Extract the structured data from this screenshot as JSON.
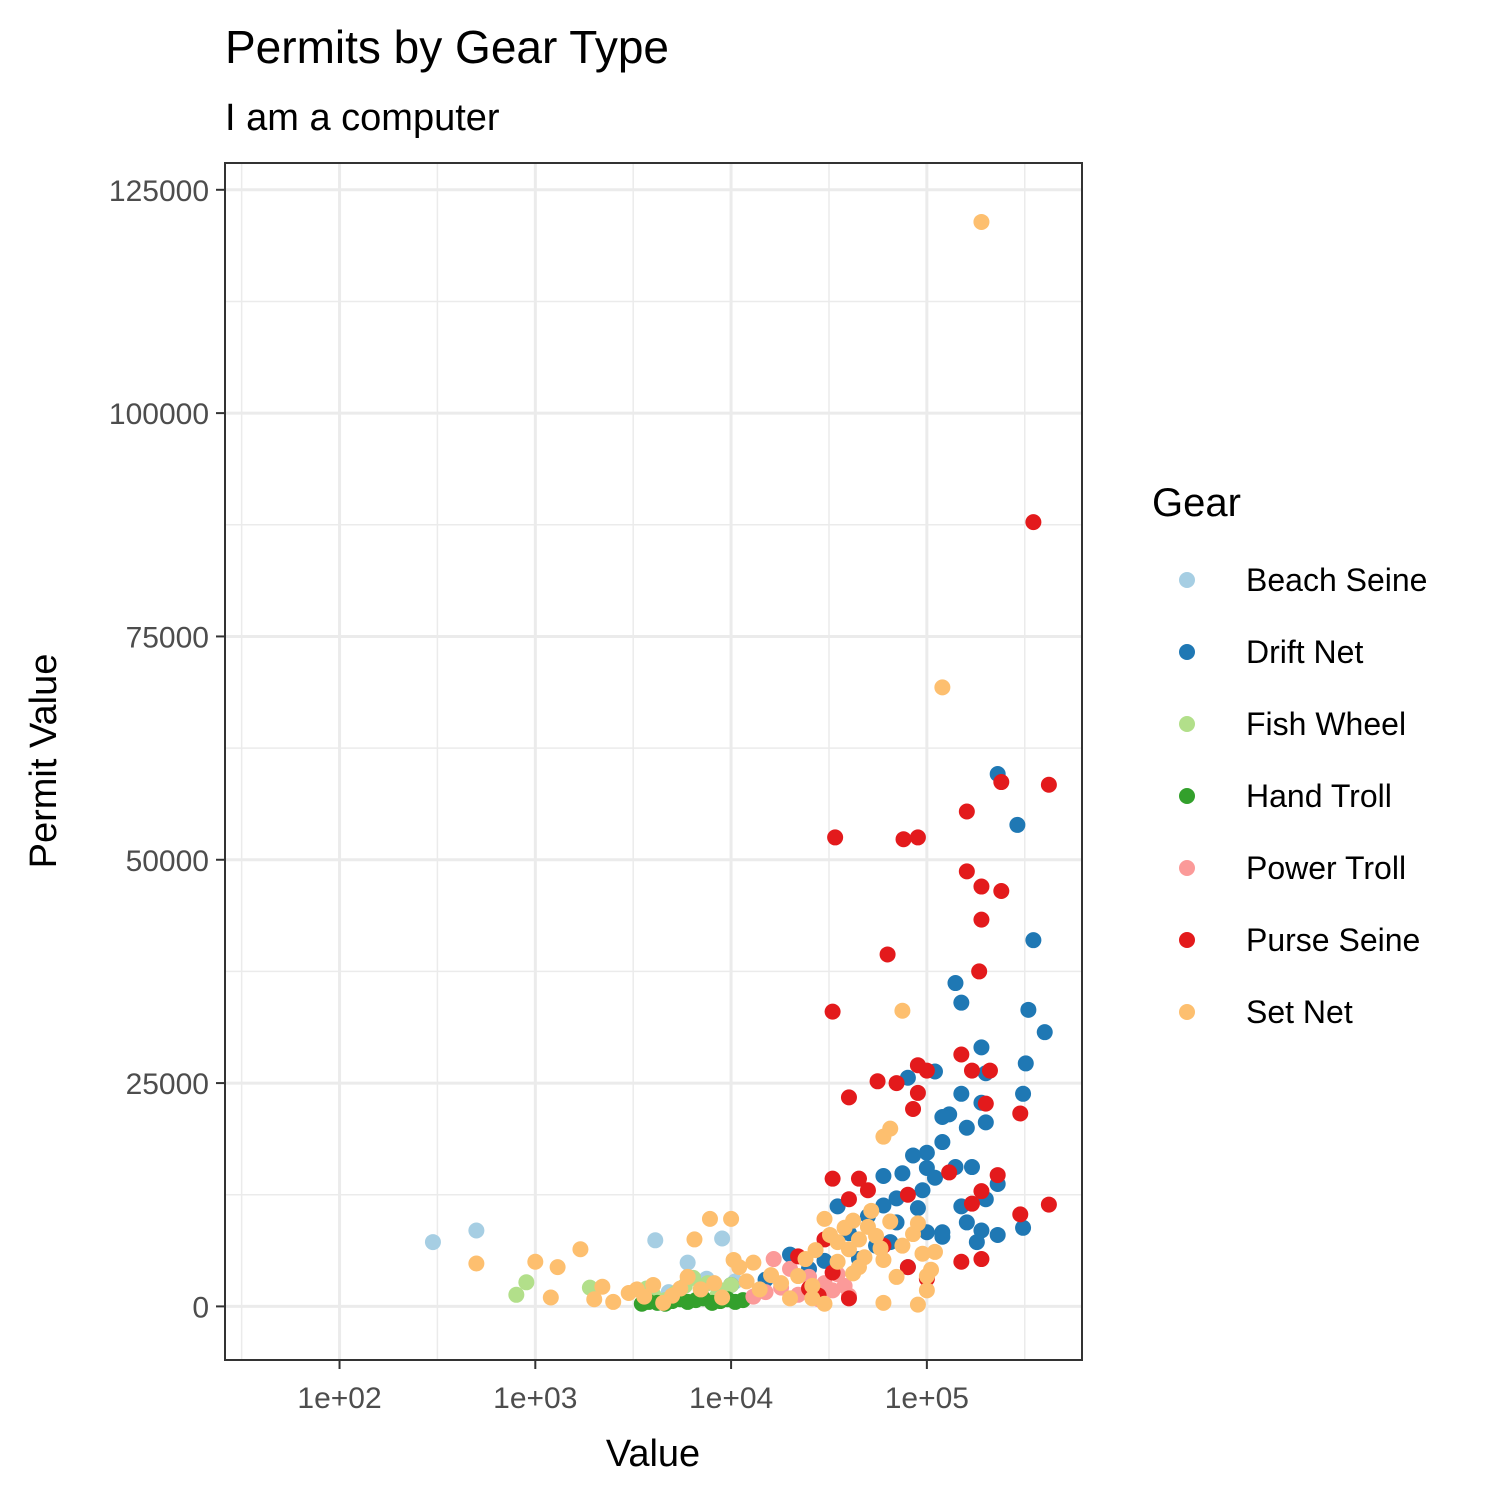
{
  "chart_data": {
    "type": "scatter",
    "title": "Permits by Gear Type",
    "subtitle": "I am a computer",
    "xlabel": "Value",
    "ylabel": "Permit Value",
    "x_scale": "log10",
    "xlim": [
      26,
      620000
    ],
    "ylim": [
      -6000,
      128000
    ],
    "x_ticks": [
      100,
      1000,
      10000,
      100000
    ],
    "x_tick_labels": [
      "1e+02",
      "1e+03",
      "1e+04",
      "1e+05"
    ],
    "y_ticks": [
      0,
      25000,
      50000,
      75000,
      100000,
      125000
    ],
    "y_tick_labels": [
      "0",
      "25000",
      "50000",
      "75000",
      "100000",
      "125000"
    ],
    "grid": true,
    "legend": {
      "title": "Gear",
      "position": "right"
    },
    "series": [
      {
        "name": "Beach Seine",
        "color": "#a6cee3",
        "points": [
          [
            300,
            7200
          ],
          [
            500,
            8500
          ],
          [
            4100,
            7400
          ],
          [
            9000,
            7600
          ],
          [
            6000,
            4900
          ],
          [
            7500,
            3100
          ],
          [
            4800,
            1600
          ],
          [
            10500,
            2800
          ]
        ]
      },
      {
        "name": "Drift Net",
        "color": "#1f78b4",
        "points": [
          [
            230000,
            59600
          ],
          [
            290000,
            53900
          ],
          [
            350000,
            41000
          ],
          [
            330000,
            33200
          ],
          [
            400000,
            30700
          ],
          [
            320000,
            27200
          ],
          [
            310000,
            23800
          ],
          [
            310000,
            8800
          ],
          [
            190000,
            29000
          ],
          [
            140000,
            36200
          ],
          [
            150000,
            34000
          ],
          [
            200000,
            26100
          ],
          [
            150000,
            23800
          ],
          [
            190000,
            22800
          ],
          [
            200000,
            20600
          ],
          [
            160000,
            20000
          ],
          [
            130000,
            21500
          ],
          [
            120000,
            21200
          ],
          [
            110000,
            26300
          ],
          [
            80000,
            25600
          ],
          [
            120000,
            18400
          ],
          [
            100000,
            17200
          ],
          [
            85000,
            16900
          ],
          [
            75000,
            14900
          ],
          [
            100000,
            15500
          ],
          [
            110000,
            14400
          ],
          [
            95000,
            13000
          ],
          [
            140000,
            15600
          ],
          [
            170000,
            15600
          ],
          [
            200000,
            12000
          ],
          [
            230000,
            13700
          ],
          [
            190000,
            8500
          ],
          [
            230000,
            8000
          ],
          [
            180000,
            7200
          ],
          [
            160000,
            9400
          ],
          [
            120000,
            8300
          ],
          [
            100000,
            8300
          ],
          [
            70000,
            12100
          ],
          [
            60000,
            11300
          ],
          [
            50000,
            10100
          ],
          [
            40000,
            8200
          ],
          [
            35000,
            11200
          ],
          [
            55000,
            6800
          ],
          [
            65000,
            7200
          ],
          [
            45000,
            5300
          ],
          [
            30000,
            5100
          ],
          [
            25000,
            4200
          ],
          [
            20000,
            5800
          ],
          [
            15000,
            3000
          ],
          [
            10000,
            2400
          ],
          [
            80000,
            4400
          ],
          [
            120000,
            7800
          ],
          [
            150000,
            11200
          ],
          [
            70000,
            9400
          ],
          [
            90000,
            11000
          ],
          [
            60000,
            14600
          ]
        ]
      },
      {
        "name": "Fish Wheel",
        "color": "#b2df8a",
        "points": [
          [
            800,
            1300
          ],
          [
            900,
            2700
          ],
          [
            1900,
            2100
          ],
          [
            3700,
            2000
          ],
          [
            4000,
            1300
          ],
          [
            4600,
            700
          ],
          [
            5200,
            1500
          ],
          [
            5800,
            2300
          ],
          [
            6400,
            3200
          ],
          [
            7000,
            1900
          ],
          [
            7600,
            2600
          ],
          [
            8500,
            1200
          ],
          [
            9200,
            1800
          ],
          [
            10000,
            2400
          ]
        ]
      },
      {
        "name": "Hand Troll",
        "color": "#33a02c",
        "points": [
          [
            3500,
            300
          ],
          [
            3800,
            500
          ],
          [
            4200,
            400
          ],
          [
            4600,
            300
          ],
          [
            5000,
            600
          ],
          [
            5500,
            800
          ],
          [
            6000,
            500
          ],
          [
            6600,
            700
          ],
          [
            7200,
            900
          ],
          [
            8000,
            400
          ],
          [
            8800,
            600
          ],
          [
            9600,
            800
          ],
          [
            10500,
            500
          ],
          [
            11500,
            700
          ]
        ]
      },
      {
        "name": "Power Troll",
        "color": "#fb9a99",
        "points": [
          [
            13000,
            1100
          ],
          [
            15000,
            1600
          ],
          [
            16500,
            5300
          ],
          [
            18000,
            2100
          ],
          [
            20000,
            4200
          ],
          [
            22000,
            1300
          ],
          [
            25000,
            3300
          ],
          [
            28000,
            800
          ],
          [
            30000,
            2600
          ],
          [
            33000,
            1800
          ],
          [
            35000,
            3600
          ],
          [
            38000,
            2300
          ],
          [
            40000,
            1200
          ]
        ]
      },
      {
        "name": "Purse Seine",
        "color": "#e31a1c",
        "points": [
          [
            350000,
            87800
          ],
          [
            420000,
            58400
          ],
          [
            240000,
            58700
          ],
          [
            160000,
            55400
          ],
          [
            160000,
            48700
          ],
          [
            190000,
            47000
          ],
          [
            240000,
            46500
          ],
          [
            190000,
            43300
          ],
          [
            185000,
            37500
          ],
          [
            34000,
            52500
          ],
          [
            76000,
            52300
          ],
          [
            90000,
            52500
          ],
          [
            63000,
            39400
          ],
          [
            33000,
            33000
          ],
          [
            150000,
            28200
          ],
          [
            170000,
            26400
          ],
          [
            210000,
            26400
          ],
          [
            90000,
            27000
          ],
          [
            100000,
            26400
          ],
          [
            200000,
            22700
          ],
          [
            300000,
            21600
          ],
          [
            40000,
            23400
          ],
          [
            56000,
            25200
          ],
          [
            70000,
            25000
          ],
          [
            85000,
            22100
          ],
          [
            90000,
            23900
          ],
          [
            300000,
            10300
          ],
          [
            420000,
            11400
          ],
          [
            230000,
            14700
          ],
          [
            190000,
            12900
          ],
          [
            170000,
            11500
          ],
          [
            33000,
            14300
          ],
          [
            45000,
            14300
          ],
          [
            50000,
            13000
          ],
          [
            80000,
            12500
          ],
          [
            40000,
            12000
          ],
          [
            30000,
            7500
          ],
          [
            22000,
            5600
          ],
          [
            25000,
            2000
          ],
          [
            28000,
            1200
          ],
          [
            33000,
            3800
          ],
          [
            40000,
            900
          ],
          [
            60000,
            6800
          ],
          [
            80000,
            4400
          ],
          [
            100000,
            3100
          ],
          [
            150000,
            5000
          ],
          [
            190000,
            5300
          ],
          [
            130000,
            15000
          ]
        ]
      },
      {
        "name": "Set Net",
        "color": "#fdbf6f",
        "points": [
          [
            190000,
            121400
          ],
          [
            120000,
            69300
          ],
          [
            75000,
            33100
          ],
          [
            60000,
            19000
          ],
          [
            65000,
            19900
          ],
          [
            26000,
            2300
          ],
          [
            26000,
            900
          ],
          [
            500,
            4800
          ],
          [
            1000,
            5000
          ],
          [
            1300,
            4400
          ],
          [
            1200,
            1000
          ],
          [
            1700,
            6400
          ],
          [
            2000,
            800
          ],
          [
            2200,
            2200
          ],
          [
            2500,
            500
          ],
          [
            3000,
            1500
          ],
          [
            3300,
            1900
          ],
          [
            3600,
            1100
          ],
          [
            4000,
            2400
          ],
          [
            4500,
            400
          ],
          [
            5000,
            1200
          ],
          [
            5500,
            2000
          ],
          [
            6000,
            3300
          ],
          [
            6500,
            7500
          ],
          [
            7000,
            1900
          ],
          [
            7800,
            9800
          ],
          [
            8200,
            2600
          ],
          [
            9000,
            1000
          ],
          [
            10000,
            9800
          ],
          [
            10300,
            5200
          ],
          [
            11000,
            4400
          ],
          [
            12000,
            2800
          ],
          [
            13000,
            4900
          ],
          [
            14000,
            1900
          ],
          [
            16000,
            3500
          ],
          [
            18000,
            2600
          ],
          [
            20000,
            900
          ],
          [
            22000,
            3400
          ],
          [
            24000,
            5300
          ],
          [
            27000,
            6300
          ],
          [
            30000,
            9800
          ],
          [
            32000,
            8000
          ],
          [
            35000,
            7200
          ],
          [
            38000,
            8800
          ],
          [
            40000,
            6400
          ],
          [
            42000,
            3700
          ],
          [
            45000,
            7500
          ],
          [
            48000,
            5500
          ],
          [
            50000,
            8900
          ],
          [
            52000,
            10700
          ],
          [
            55000,
            7900
          ],
          [
            58000,
            6500
          ],
          [
            60000,
            5200
          ],
          [
            65000,
            9500
          ],
          [
            70000,
            3300
          ],
          [
            75000,
            6800
          ],
          [
            85000,
            8100
          ],
          [
            90000,
            9300
          ],
          [
            95000,
            5900
          ],
          [
            100000,
            3400
          ],
          [
            105000,
            4100
          ],
          [
            110000,
            6100
          ],
          [
            60000,
            400
          ],
          [
            90000,
            200
          ],
          [
            30000,
            300
          ],
          [
            100000,
            1800
          ],
          [
            45000,
            4400
          ],
          [
            35000,
            5000
          ],
          [
            42000,
            9600
          ]
        ]
      }
    ]
  }
}
